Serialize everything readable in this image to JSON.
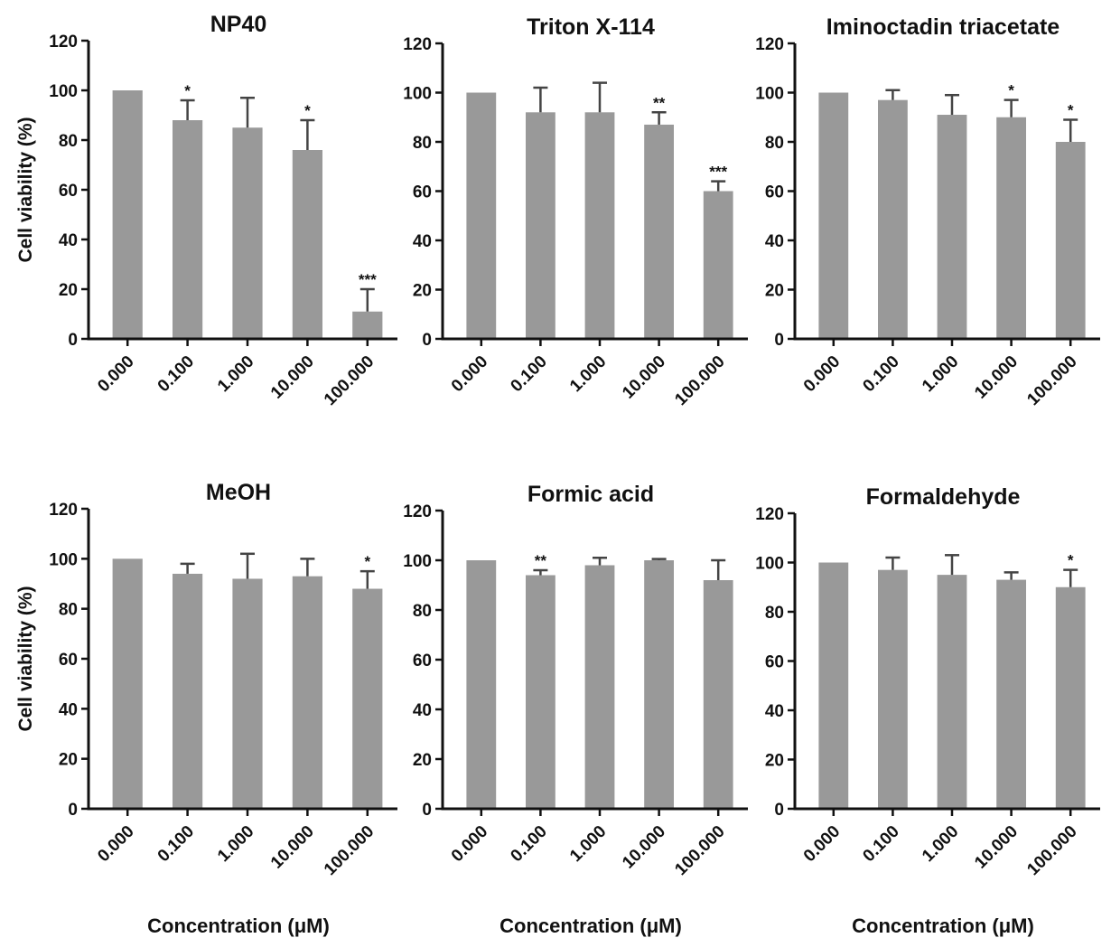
{
  "ylabel": "Cell viability (%)",
  "xlabel": "Concentration (μM)",
  "chart_data": [
    {
      "type": "bar",
      "title": "NP40",
      "categories": [
        "0.000",
        "0.100",
        "1.000",
        "10.000",
        "100.000"
      ],
      "values": [
        100,
        88,
        85,
        76,
        11
      ],
      "errors": [
        0,
        8,
        12,
        12,
        9
      ],
      "significance": [
        "",
        "*",
        "",
        "*",
        "***"
      ],
      "ylim": [
        0,
        120
      ],
      "yticks": [
        0,
        20,
        40,
        60,
        80,
        100,
        120
      ],
      "ylabel": "Cell viability (%)",
      "xlabel": "",
      "color": "#999999"
    },
    {
      "type": "bar",
      "title": "Triton X-114",
      "categories": [
        "0.000",
        "0.100",
        "1.000",
        "10.000",
        "100.000"
      ],
      "values": [
        100,
        92,
        92,
        87,
        60
      ],
      "errors": [
        0,
        10,
        12,
        5,
        4
      ],
      "significance": [
        "",
        "",
        "",
        "**",
        "***"
      ],
      "ylim": [
        0,
        120
      ],
      "yticks": [
        0,
        20,
        40,
        60,
        80,
        100,
        120
      ],
      "ylabel": "",
      "xlabel": "",
      "color": "#999999"
    },
    {
      "type": "bar",
      "title": "Iminoctadin triacetate",
      "categories": [
        "0.000",
        "0.100",
        "1.000",
        "10.000",
        "100.000"
      ],
      "values": [
        100,
        97,
        91,
        90,
        80
      ],
      "errors": [
        0,
        4,
        8,
        7,
        9
      ],
      "significance": [
        "",
        "",
        "",
        "*",
        "*"
      ],
      "ylim": [
        0,
        120
      ],
      "yticks": [
        0,
        20,
        40,
        60,
        80,
        100,
        120
      ],
      "ylabel": "",
      "xlabel": "",
      "color": "#999999"
    },
    {
      "type": "bar",
      "title": "MeOH",
      "categories": [
        "0.000",
        "0.100",
        "1.000",
        "10.000",
        "100.000"
      ],
      "values": [
        100,
        94,
        92,
        93,
        88
      ],
      "errors": [
        0,
        4,
        10,
        7,
        7
      ],
      "significance": [
        "",
        "",
        "",
        "",
        "*"
      ],
      "ylim": [
        0,
        120
      ],
      "yticks": [
        0,
        20,
        40,
        60,
        80,
        100,
        120
      ],
      "ylabel": "Cell viability (%)",
      "xlabel": "Concentration (μM)",
      "color": "#999999"
    },
    {
      "type": "bar",
      "title": "Formic acid",
      "categories": [
        "0.000",
        "0.100",
        "1.000",
        "10.000",
        "100.000"
      ],
      "values": [
        100,
        94,
        98,
        100,
        92
      ],
      "errors": [
        0,
        2,
        3,
        0.5,
        8
      ],
      "significance": [
        "",
        "**",
        "",
        "",
        ""
      ],
      "ylim": [
        0,
        120
      ],
      "yticks": [
        0,
        20,
        40,
        60,
        80,
        100,
        120
      ],
      "ylabel": "",
      "xlabel": "Concentration (μM)",
      "color": "#999999"
    },
    {
      "type": "bar",
      "title": "Formaldehyde",
      "categories": [
        "0.000",
        "0.100",
        "1.000",
        "10.000",
        "100.000"
      ],
      "values": [
        100,
        97,
        95,
        93,
        90
      ],
      "errors": [
        0,
        5,
        8,
        3,
        7
      ],
      "significance": [
        "",
        "",
        "",
        "",
        "*"
      ],
      "ylim": [
        0,
        120
      ],
      "yticks": [
        0,
        20,
        40,
        60,
        80,
        100,
        120
      ],
      "ylabel": "",
      "xlabel": "Concentration (μM)",
      "color": "#999999"
    }
  ]
}
